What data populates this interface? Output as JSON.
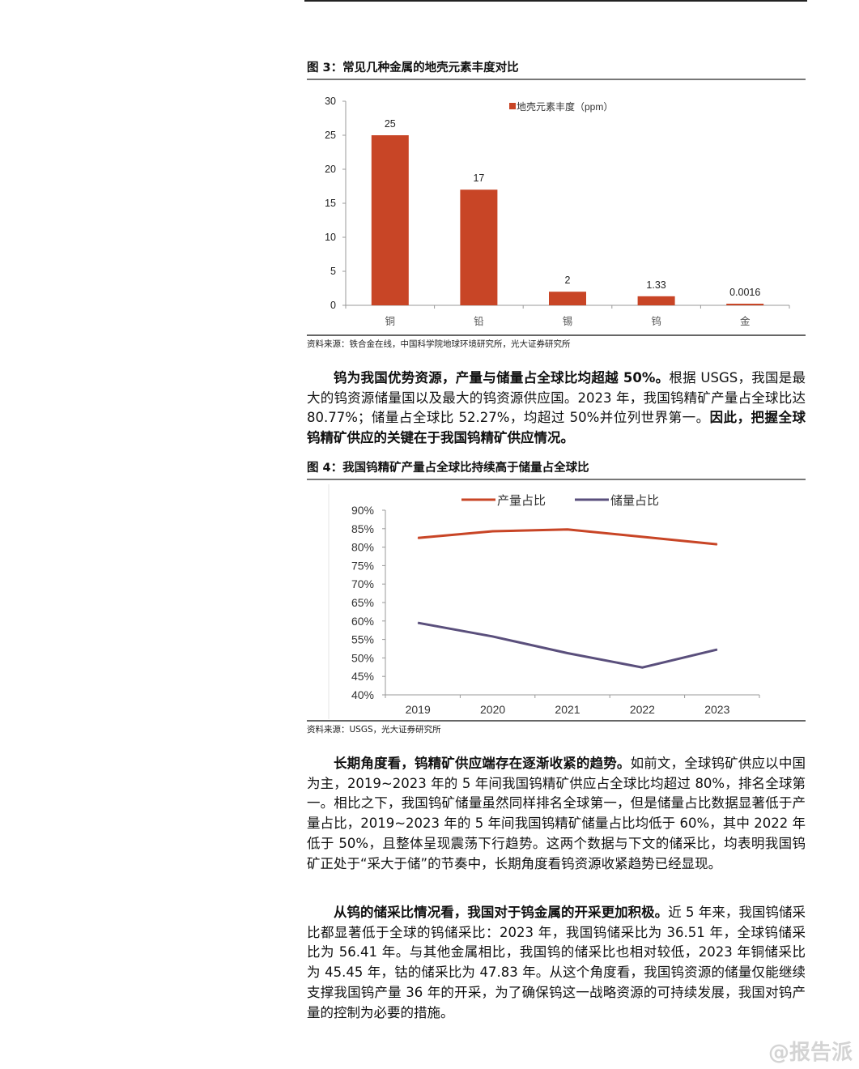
{
  "figure3": {
    "title": "图 3：常见几种金属的地壳元素丰度对比",
    "source": "资料来源：铁合金在线，中国科学院地球环境研究所，光大证券研究所"
  },
  "figure4": {
    "title": "图 4：我国钨精矿产量占全球比持续高于储量占全球比",
    "source": "资料来源：USGS，光大证券研究所"
  },
  "paragraphs": [
    {
      "bold": "钨为我国优势资源，产量与储量占全球比均超越 50%。",
      "text": "根据 USGS，我国是最大的钨资源储量国以及最大的钨资源供应国。2023 年，我国钨精矿产量占全球比达 80.77%；储量占全球比 52.27%，均超过 50%并位列世界第一。",
      "bold2": "因此，把握全球钨精矿供应的关键在于我国钨精矿供应情况。"
    },
    {
      "bold": "长期角度看，钨精矿供应端存在逐渐收紧的趋势。",
      "text": "如前文，全球钨矿供应以中国为主，2019~2023 年的 5 年间我国钨精矿供应占全球比均超过 80%，排名全球第一。相比之下，我国钨矿储量虽然同样排名全球第一，但是储量占比数据显著低于产量占比，2019~2023 年的 5 年间我国钨精矿储量占比均低于 60%，其中 2022 年低于 50%，且整体呈现震荡下行趋势。这两个数据与下文的储采比，均表明我国钨矿正处于“采大于储”的节奏中，长期角度看钨资源收紧趋势已经显现。",
      "bold2": ""
    },
    {
      "bold": "从钨的储采比情况看，我国对于钨金属的开采更加积极。",
      "text": "近 5 年来，我国钨储采比都显著低于全球的钨储采比：2023 年，我国钨储采比为 36.51 年，全球钨储采比为 56.41 年。与其他金属相比，我国钨的储采比也相对较低，2023 年铜储采比为 45.45 年，钴的储采比为 47.83 年。从这个角度看，我国钨资源的储量仅能继续支撑我国钨产量 36 年的开采，为了确保钨这一战略资源的可持续发展，我国对钨产量的控制为必要的措施。",
      "bold2": ""
    }
  ],
  "watermark": "@报告派",
  "chart_data": [
    {
      "type": "bar",
      "categories": [
        "铜",
        "铅",
        "锡",
        "钨",
        "金"
      ],
      "series": [
        {
          "name": "地壳元素丰度（ppm）",
          "values": [
            25,
            17,
            2,
            1.33,
            0.0016
          ],
          "color": "#c84526"
        }
      ],
      "data_labels": [
        "25",
        "17",
        "2",
        "1.33",
        "0.0016"
      ],
      "ylim": [
        0,
        30
      ],
      "yticks": [
        0,
        5,
        10,
        15,
        20,
        25,
        30
      ],
      "legend": "top-center",
      "grid": false
    },
    {
      "type": "line",
      "categories": [
        "2019",
        "2020",
        "2021",
        "2022",
        "2023"
      ],
      "series": [
        {
          "name": "产量占比",
          "values": [
            82.5,
            84.3,
            84.8,
            82.8,
            80.77
          ],
          "color": "#c84526"
        },
        {
          "name": "储量占比",
          "values": [
            59.5,
            55.8,
            51.3,
            47.4,
            52.27
          ],
          "color": "#5a4f7c"
        }
      ],
      "ylim": [
        40,
        90
      ],
      "yticks": [
        "40%",
        "45%",
        "50%",
        "55%",
        "60%",
        "65%",
        "70%",
        "75%",
        "80%",
        "85%",
        "90%"
      ],
      "legend": "top-center",
      "grid": false
    }
  ]
}
